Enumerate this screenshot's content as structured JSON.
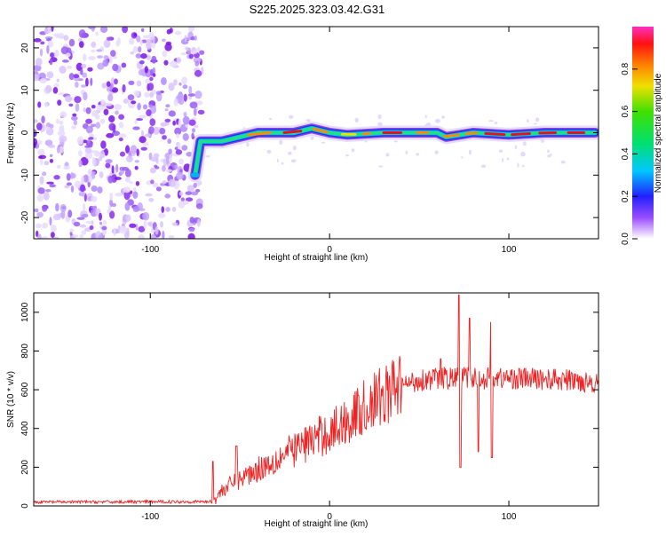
{
  "title": "S225.2025.323.03.42.G31",
  "colors": {
    "snr_line": "#ee2222",
    "track_core": "#e8101e",
    "noise": "#8a3cf0"
  },
  "chart_data": [
    {
      "type": "heatmap",
      "name": "spectrogram",
      "xlabel": "Height of straight line (km)",
      "ylabel": "Frequency (Hz)",
      "xlim": [
        -165,
        150
      ],
      "ylim": [
        -25,
        25
      ],
      "xticks": [
        -100,
        0,
        100
      ],
      "yticks": [
        -20,
        -10,
        0,
        10,
        20
      ],
      "noise_region_x": [
        -165,
        -75
      ],
      "track": [
        {
          "x": -75,
          "y": -10
        },
        {
          "x": -72,
          "y": -2
        },
        {
          "x": -60,
          "y": -2
        },
        {
          "x": -50,
          "y": -1
        },
        {
          "x": -40,
          "y": 0
        },
        {
          "x": -30,
          "y": 0
        },
        {
          "x": -20,
          "y": 0
        },
        {
          "x": -10,
          "y": 1
        },
        {
          "x": 0,
          "y": 0
        },
        {
          "x": 10,
          "y": -0.5
        },
        {
          "x": 30,
          "y": 0
        },
        {
          "x": 60,
          "y": 0
        },
        {
          "x": 65,
          "y": -1
        },
        {
          "x": 80,
          "y": 0
        },
        {
          "x": 100,
          "y": -0.5
        },
        {
          "x": 120,
          "y": 0
        },
        {
          "x": 148,
          "y": 0
        }
      ],
      "colorbar": {
        "label": "Normalized spectral amplitude",
        "range": [
          0,
          1
        ],
        "ticks": [
          "0.0",
          "0.2",
          "0.4",
          "0.6",
          "0.8"
        ]
      }
    },
    {
      "type": "line",
      "name": "snr",
      "xlabel": "Height of straight line (km)",
      "ylabel": "SNR (10 * v/v)",
      "xlim": [
        -165,
        150
      ],
      "ylim": [
        0,
        1100
      ],
      "xticks": [
        -100,
        0,
        100
      ],
      "yticks": [
        0,
        200,
        400,
        600,
        800,
        1000
      ],
      "trend": [
        {
          "x": -165,
          "y": 20
        },
        {
          "x": -65,
          "y": 22
        },
        {
          "x": -60,
          "y": 80
        },
        {
          "x": -50,
          "y": 140
        },
        {
          "x": -40,
          "y": 190
        },
        {
          "x": -30,
          "y": 240
        },
        {
          "x": -20,
          "y": 290
        },
        {
          "x": -10,
          "y": 340
        },
        {
          "x": 0,
          "y": 380
        },
        {
          "x": 10,
          "y": 440
        },
        {
          "x": 20,
          "y": 510
        },
        {
          "x": 30,
          "y": 570
        },
        {
          "x": 40,
          "y": 620
        },
        {
          "x": 50,
          "y": 650
        },
        {
          "x": 60,
          "y": 660
        },
        {
          "x": 80,
          "y": 660
        },
        {
          "x": 100,
          "y": 660
        },
        {
          "x": 120,
          "y": 655
        },
        {
          "x": 150,
          "y": 640
        }
      ],
      "spikes": [
        {
          "x": -65,
          "y": 230
        },
        {
          "x": -52,
          "y": 310
        },
        {
          "x": 62,
          "y": 760
        },
        {
          "x": 72,
          "y": 1090
        },
        {
          "x": 73,
          "y": 200
        },
        {
          "x": 78,
          "y": 970
        },
        {
          "x": 83,
          "y": 280
        },
        {
          "x": 90,
          "y": 950
        },
        {
          "x": 90.5,
          "y": 250
        }
      ]
    }
  ]
}
